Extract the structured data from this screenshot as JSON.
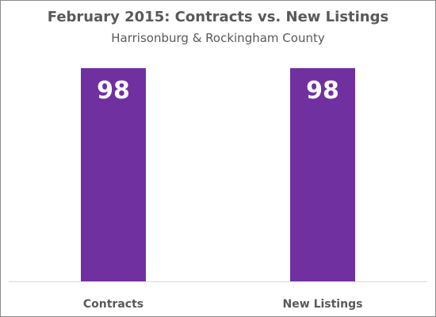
{
  "chart_data": {
    "type": "bar",
    "title": "February 2015: Contracts vs. New Listings",
    "subtitle": "Harrisonburg & Rockingham County",
    "categories": [
      "Contracts",
      "New Listings"
    ],
    "values": [
      98,
      98
    ],
    "data_labels": [
      "98",
      "98"
    ],
    "bar_color": "#7030A0",
    "axis_line_color": "#d9d9d9",
    "label_color": "#595959",
    "ylim": [
      0,
      98
    ],
    "grid": false,
    "legend": "none"
  }
}
